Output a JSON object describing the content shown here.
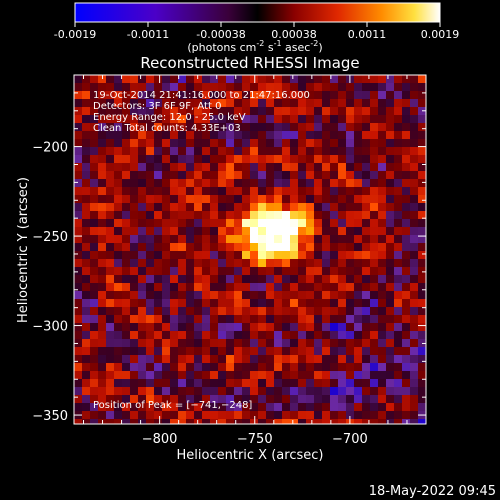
{
  "colorbar": {
    "ticks": [
      "-0.0019",
      "-0.0011",
      "-0.00038",
      "0.00038",
      "0.0011",
      "0.0019"
    ],
    "units_main": "(photons cm",
    "units_sup1": "-2",
    "units_mid": " s",
    "units_sup2": "-1",
    "units_asec": " asec",
    "units_sup3": "-2",
    "units_end": ")"
  },
  "chart_data": {
    "type": "heatmap",
    "title": "Reconstructed RHESSI Image",
    "xlabel": "Heliocentric X (arcsec)",
    "ylabel": "Heliocentric Y (arcsec)",
    "xlim": [
      -845,
      -660
    ],
    "ylim": [
      -355,
      -160
    ],
    "x_ticks": [
      -800,
      -750,
      -700
    ],
    "x_tick_labels": [
      "−800",
      "−750",
      "−700"
    ],
    "y_ticks": [
      -200,
      -250,
      -300,
      -350
    ],
    "y_tick_labels": [
      "−200",
      "−250",
      "−300",
      "−350"
    ],
    "color_range": [
      -0.0019,
      0.0019
    ],
    "colormap": [
      "#0000ff",
      "#1a00d0",
      "#6d2aa8",
      "#320028",
      "#7a0000",
      "#c81400",
      "#ff5000",
      "#ffb400",
      "#ffff9a",
      "#ffffff"
    ],
    "peak_position": [
      -741,
      -248
    ],
    "annotations": [
      "19-Oct-2014 21:41:16.000 to 21:47:16.000",
      "Detectors: 3F 6F 9F, Att 0",
      "Energy Range: 12.0 - 25.0 keV",
      "Clean    Total counts: 4.33E+03"
    ],
    "peak_text": "Position of Peak = [−741,−248]"
  },
  "footer": {
    "date": "18-May-2022 09:45"
  }
}
